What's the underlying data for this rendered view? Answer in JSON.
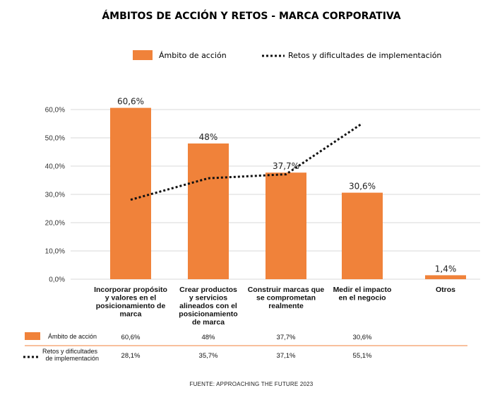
{
  "title": "ÁMBITOS DE ACCIÓN Y RETOS - MARCA CORPORATIVA",
  "source": "FUENTE: APPROACHING THE FUTURE 2023",
  "colors": {
    "bar": "#F0823A",
    "line": "#111111",
    "grid": "#d9d9d9",
    "separator": "#F0823A"
  },
  "chart_data": {
    "type": "bar",
    "categories": [
      "Incorporar propósito y valores en el posicionamiento de marca",
      "Crear productos y servicios alineados con el posicionamiento de marca",
      "Construir marcas que se comprometan realmente",
      "Medir el impacto en el negocio",
      "Otros"
    ],
    "category_lines": [
      [
        "Incorporar propósito",
        "y valores en el",
        "posicionamiento de",
        "marca"
      ],
      [
        "Crear productos",
        "y servicios",
        "alineados con el",
        "posicionamiento",
        "de marca"
      ],
      [
        "Construir marcas que",
        "se comprometan",
        "realmente"
      ],
      [
        "Medir el impacto",
        "en el negocio"
      ],
      [
        "Otros"
      ]
    ],
    "series": [
      {
        "name": "Ámbito de acción",
        "type": "bar",
        "values": [
          60.6,
          48,
          37.7,
          30.6,
          1.4
        ],
        "labels": [
          "60,6%",
          "48%",
          "37,7%",
          "30,6%",
          "1,4%"
        ],
        "table_labels": [
          "60,6%",
          "48%",
          "37,7%",
          "30,6%",
          ""
        ]
      },
      {
        "name": "Retos y dificultades de implementación",
        "type": "line",
        "style": "dotted",
        "values": [
          28.1,
          35.7,
          37.1,
          55.1,
          null
        ],
        "table_labels": [
          "28,1%",
          "35,7%",
          "37,1%",
          "55,1%",
          ""
        ]
      }
    ],
    "legend_labels": [
      "Ámbito de acción",
      "Retos y dificultades de implementación"
    ],
    "table_row_labels": [
      "Ámbito de acción",
      "Retos y dificultades de implementación"
    ],
    "ylim": [
      0,
      60
    ],
    "yticks": [
      "0,0%",
      "10,0%",
      "20,0%",
      "30,0%",
      "40,0%",
      "50,0%",
      "60,0%"
    ],
    "grid": true,
    "legend_position": "top"
  }
}
